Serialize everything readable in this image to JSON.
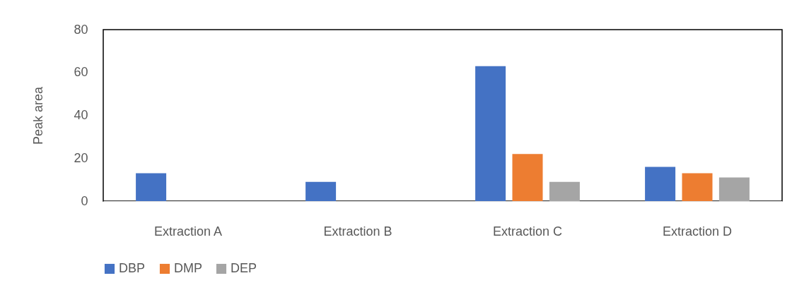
{
  "chart_data": {
    "type": "bar",
    "ylabel": "Peak area",
    "categories": [
      "Extraction A",
      "Extraction B",
      "Extraction C",
      "Extraction D"
    ],
    "series": [
      {
        "name": "DBP",
        "color": "#4472c4",
        "values": [
          13,
          9,
          63,
          16
        ]
      },
      {
        "name": "DMP",
        "color": "#ed7d31",
        "values": [
          0,
          0,
          22,
          13
        ]
      },
      {
        "name": "DEP",
        "color": "#a5a5a5",
        "values": [
          0,
          0,
          9,
          11
        ]
      }
    ],
    "ylim": [
      0,
      80
    ],
    "yticks": [
      0,
      20,
      40,
      60,
      80
    ],
    "grid": false,
    "legend": "bottom"
  }
}
